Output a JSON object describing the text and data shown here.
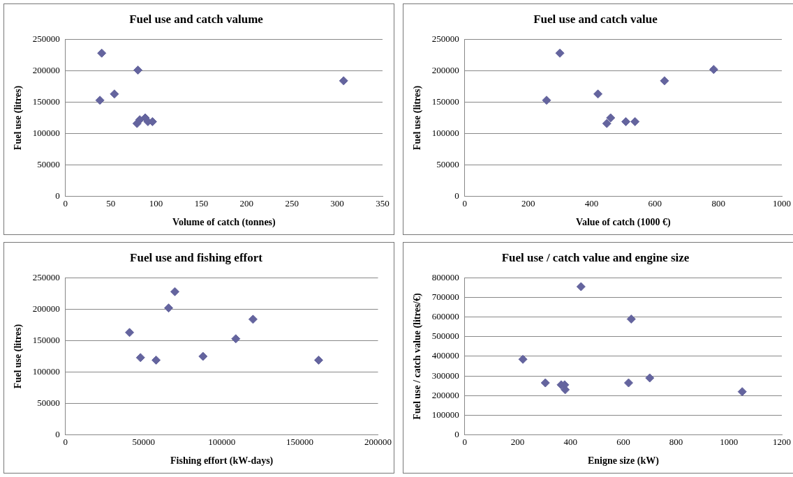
{
  "chart_data": [
    {
      "type": "scatter",
      "title": "Fuel use and catch valume",
      "xlabel": "Volume of catch (tonnes)",
      "ylabel": "Fuel use (litres)",
      "xlim": [
        0,
        350
      ],
      "xticks": [
        0,
        50,
        100,
        150,
        200,
        250,
        300,
        350
      ],
      "ylim": [
        0,
        250000
      ],
      "yticks": [
        0,
        50000,
        100000,
        150000,
        200000,
        250000
      ],
      "grid": "y",
      "marker": "diamond",
      "series": [
        {
          "color": "#64649e",
          "x": [
            40,
            38,
            54,
            80,
            307,
            79,
            82,
            88,
            91,
            96
          ],
          "values": [
            228000,
            153000,
            163000,
            201000,
            184000,
            116000,
            122000,
            125000,
            119000,
            119000
          ]
        }
      ]
    },
    {
      "type": "scatter",
      "title": "Fuel use and catch value",
      "xlabel": "Value of catch (1000 €)",
      "ylabel": "Fuel use (litres)",
      "xlim": [
        0,
        1000
      ],
      "xticks": [
        0,
        200,
        400,
        600,
        800,
        1000
      ],
      "ylim": [
        0,
        250000
      ],
      "yticks": [
        0,
        50000,
        100000,
        150000,
        200000,
        250000
      ],
      "grid": "y",
      "marker": "diamond",
      "series": [
        {
          "color": "#64649e",
          "x": [
            258,
            300,
            420,
            448,
            455,
            460,
            508,
            537,
            630,
            785
          ],
          "values": [
            153000,
            228000,
            163000,
            116000,
            null,
            125000,
            119000,
            119000,
            184000,
            202000
          ]
        }
      ]
    },
    {
      "type": "scatter",
      "title": "Fuel use and fishing effort",
      "xlabel": "Fishing effort (kW-days)",
      "ylabel": "Fuel use (litres)",
      "xlim": [
        0,
        200000
      ],
      "xticks": [
        0,
        50000,
        100000,
        150000,
        200000
      ],
      "ylim": [
        0,
        250000
      ],
      "yticks": [
        0,
        50000,
        100000,
        150000,
        200000,
        250000
      ],
      "grid": "y",
      "marker": "diamond",
      "series": [
        {
          "color": "#64649e",
          "x": [
            41000,
            48000,
            57000,
            58000,
            66000,
            70000,
            88000,
            109000,
            120000,
            162000
          ],
          "values": [
            163000,
            123000,
            null,
            119000,
            202000,
            228000,
            125000,
            153000,
            184000,
            119000
          ]
        }
      ]
    },
    {
      "type": "scatter",
      "title": "Fuel use / catch value and engine size",
      "xlabel": "Enigne size (kW)",
      "ylabel": "Fuel use / catch value (litres/€)",
      "xlim": [
        0,
        1200
      ],
      "xticks": [
        0,
        200,
        400,
        600,
        800,
        1000,
        1200
      ],
      "ylim": [
        0,
        800000
      ],
      "yticks": [
        0,
        100000,
        200000,
        300000,
        400000,
        500000,
        600000,
        700000,
        800000
      ],
      "grid": "y",
      "marker": "diamond",
      "series": [
        {
          "color": "#64649e",
          "x": [
            220,
            305,
            365,
            378,
            380,
            440,
            620,
            630,
            700,
            1050
          ],
          "values": [
            385000,
            265000,
            255000,
            255000,
            230000,
            755000,
            265000,
            590000,
            290000,
            220000
          ]
        }
      ]
    }
  ]
}
